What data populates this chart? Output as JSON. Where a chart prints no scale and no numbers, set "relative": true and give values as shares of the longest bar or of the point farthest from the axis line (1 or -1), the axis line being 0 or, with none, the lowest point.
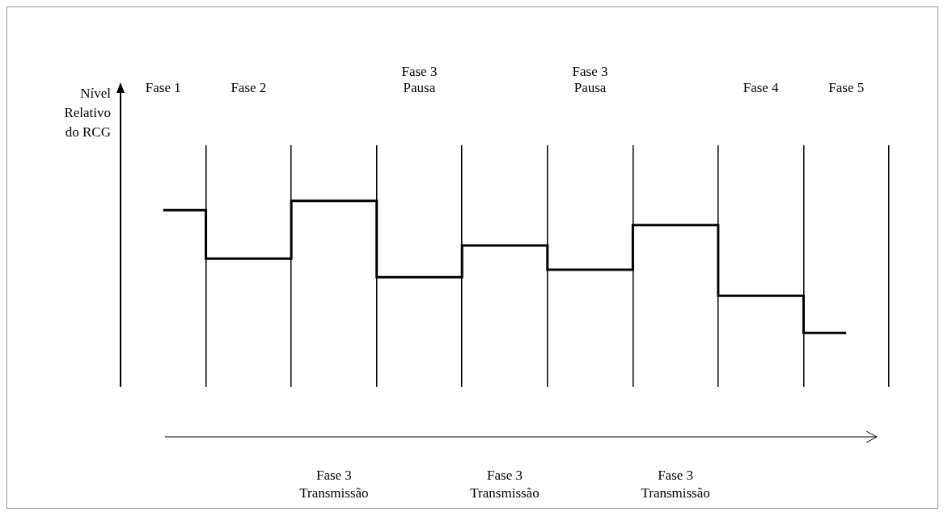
{
  "chart_data": {
    "type": "step",
    "relative": true,
    "ylabel": "Nível\nRelativo\ndo RCG",
    "categories": [
      "Fase 1",
      "Fase 2",
      null,
      "Fase 3\nPausa",
      null,
      "Fase 3\nPausa",
      null,
      "Fase 4",
      "Fase 5"
    ],
    "series": [
      {
        "color": "#000000",
        "values": [
          0.95,
          0.69,
          1,
          0.59,
          0.76,
          0.63,
          0.87,
          0.49,
          0.29
        ]
      }
    ],
    "annotations": [
      "Fase 3\nTransmissão",
      "Fase 3\nTransmissão",
      "Fase 3\nTransmissão"
    ],
    "grid": "x",
    "legend": false
  }
}
